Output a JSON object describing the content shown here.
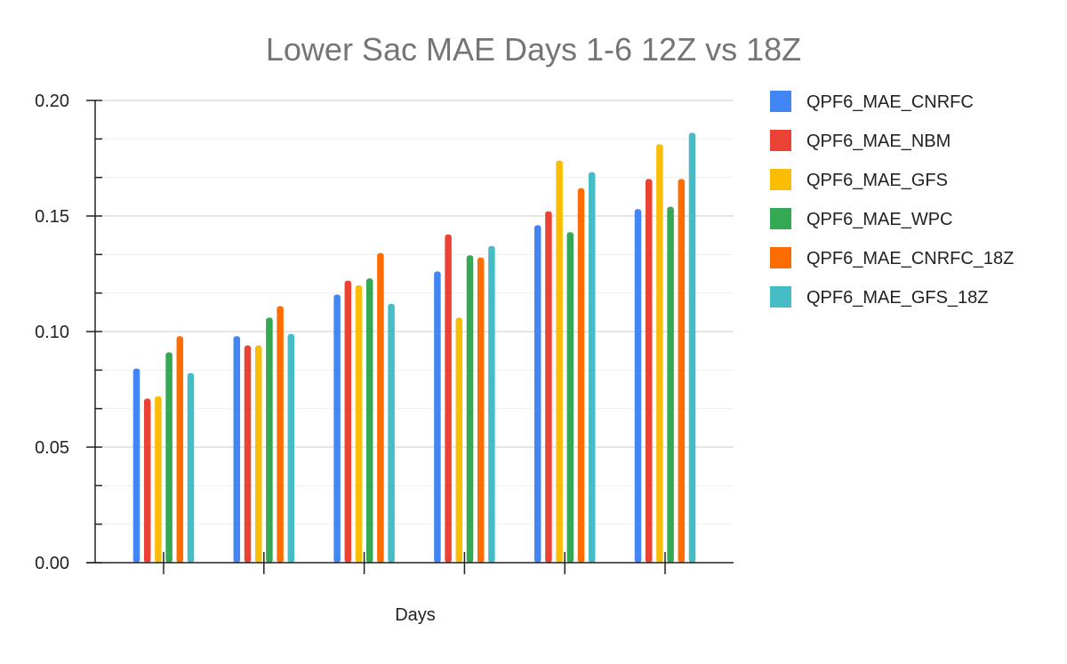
{
  "chart_data": {
    "type": "bar",
    "title": "Lower Sac MAE Days 1-6 12Z vs 18Z",
    "xlabel": "Days",
    "ylabel": "",
    "categories": [
      "",
      "",
      "",
      "",
      "",
      ""
    ],
    "ylim": [
      0,
      0.2
    ],
    "yticks": [
      "0.00",
      "0.05",
      "0.10",
      "0.15",
      "0.20"
    ],
    "grid": true,
    "legend_position": "right",
    "series": [
      {
        "name": "QPF6_MAE_CNRFC",
        "color": "#4285F4",
        "values": [
          0.084,
          0.098,
          0.116,
          0.126,
          0.146,
          0.153
        ]
      },
      {
        "name": "QPF6_MAE_NBM",
        "color": "#EA4335",
        "values": [
          0.071,
          0.094,
          0.122,
          0.142,
          0.152,
          0.166
        ]
      },
      {
        "name": "QPF6_MAE_GFS",
        "color": "#FBBC04",
        "values": [
          0.072,
          0.094,
          0.12,
          0.106,
          0.174,
          0.181
        ]
      },
      {
        "name": "QPF6_MAE_WPC",
        "color": "#34A853",
        "values": [
          0.091,
          0.106,
          0.123,
          0.133,
          0.143,
          0.154
        ]
      },
      {
        "name": "QPF6_MAE_CNRFC_18Z",
        "color": "#FF6D01",
        "values": [
          0.098,
          0.111,
          0.134,
          0.132,
          0.162,
          0.166
        ]
      },
      {
        "name": "QPF6_MAE_GFS_18Z",
        "color": "#46BDC6",
        "values": [
          0.082,
          0.099,
          0.112,
          0.137,
          0.169,
          0.186
        ]
      }
    ]
  }
}
